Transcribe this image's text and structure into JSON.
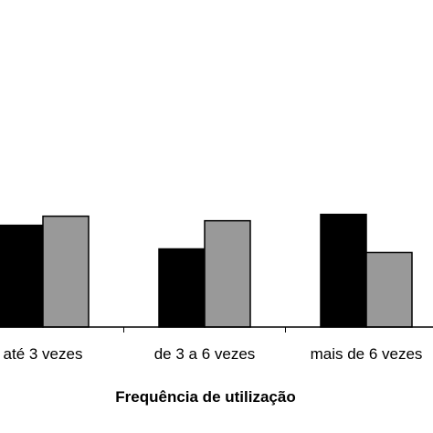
{
  "chart_data": {
    "type": "bar",
    "categories": [
      "até 3 vezes",
      "de 3 a 6 vezes",
      "mais de 6 vezes"
    ],
    "series": [
      {
        "color": "#000000",
        "values": [
          112,
          86,
          124
        ]
      },
      {
        "color": "#999999",
        "values": [
          122,
          117,
          82
        ]
      }
    ],
    "xlabel": "Frequência de utilização",
    "ylabel": "",
    "ylim": [
      0,
      360
    ],
    "grid": false
  }
}
